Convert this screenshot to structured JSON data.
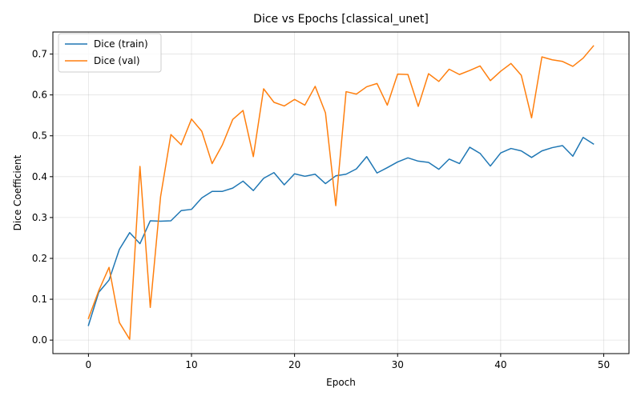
{
  "chart_data": {
    "type": "line",
    "title": "Dice vs Epochs [classical_unet]",
    "xlabel": "Epoch",
    "ylabel": "Dice Coefficient",
    "xlim": [
      -3.45,
      52.45
    ],
    "ylim": [
      -0.033,
      0.754
    ],
    "xticks": [
      0,
      10,
      20,
      30,
      40,
      50
    ],
    "yticks": [
      0.0,
      0.1,
      0.2,
      0.3,
      0.4,
      0.5,
      0.6,
      0.7
    ],
    "ytick_labels": [
      "0.0",
      "0.1",
      "0.2",
      "0.3",
      "0.4",
      "0.5",
      "0.6",
      "0.7"
    ],
    "grid": true,
    "legend_position": "top-left",
    "x": [
      0,
      1,
      2,
      3,
      4,
      5,
      6,
      7,
      8,
      9,
      10,
      11,
      12,
      13,
      14,
      15,
      16,
      17,
      18,
      19,
      20,
      21,
      22,
      23,
      24,
      25,
      26,
      27,
      28,
      29,
      30,
      31,
      32,
      33,
      34,
      35,
      36,
      37,
      38,
      39,
      40,
      41,
      42,
      43,
      44,
      45,
      46,
      47,
      48,
      49
    ],
    "series": [
      {
        "name": "Dice (train)",
        "color": "#1f77b4",
        "values": [
          0.036,
          0.117,
          0.147,
          0.222,
          0.263,
          0.236,
          0.292,
          0.291,
          0.292,
          0.317,
          0.32,
          0.348,
          0.364,
          0.364,
          0.372,
          0.389,
          0.366,
          0.396,
          0.41,
          0.38,
          0.407,
          0.401,
          0.406,
          0.383,
          0.402,
          0.406,
          0.419,
          0.449,
          0.409,
          0.422,
          0.436,
          0.446,
          0.438,
          0.435,
          0.418,
          0.443,
          0.432,
          0.472,
          0.457,
          0.426,
          0.458,
          0.469,
          0.463,
          0.447,
          0.463,
          0.471,
          0.476,
          0.45,
          0.496,
          0.48
        ]
      },
      {
        "name": "Dice (val)",
        "color": "#ff7f0e",
        "values": [
          0.053,
          0.121,
          0.178,
          0.043,
          0.002,
          0.425,
          0.08,
          0.351,
          0.503,
          0.478,
          0.541,
          0.511,
          0.432,
          0.478,
          0.54,
          0.562,
          0.449,
          0.615,
          0.582,
          0.573,
          0.589,
          0.575,
          0.621,
          0.556,
          0.329,
          0.608,
          0.602,
          0.62,
          0.628,
          0.575,
          0.651,
          0.65,
          0.572,
          0.652,
          0.633,
          0.663,
          0.65,
          0.66,
          0.671,
          0.635,
          0.658,
          0.677,
          0.648,
          0.544,
          0.693,
          0.686,
          0.682,
          0.67,
          0.69,
          0.72
        ]
      }
    ]
  }
}
